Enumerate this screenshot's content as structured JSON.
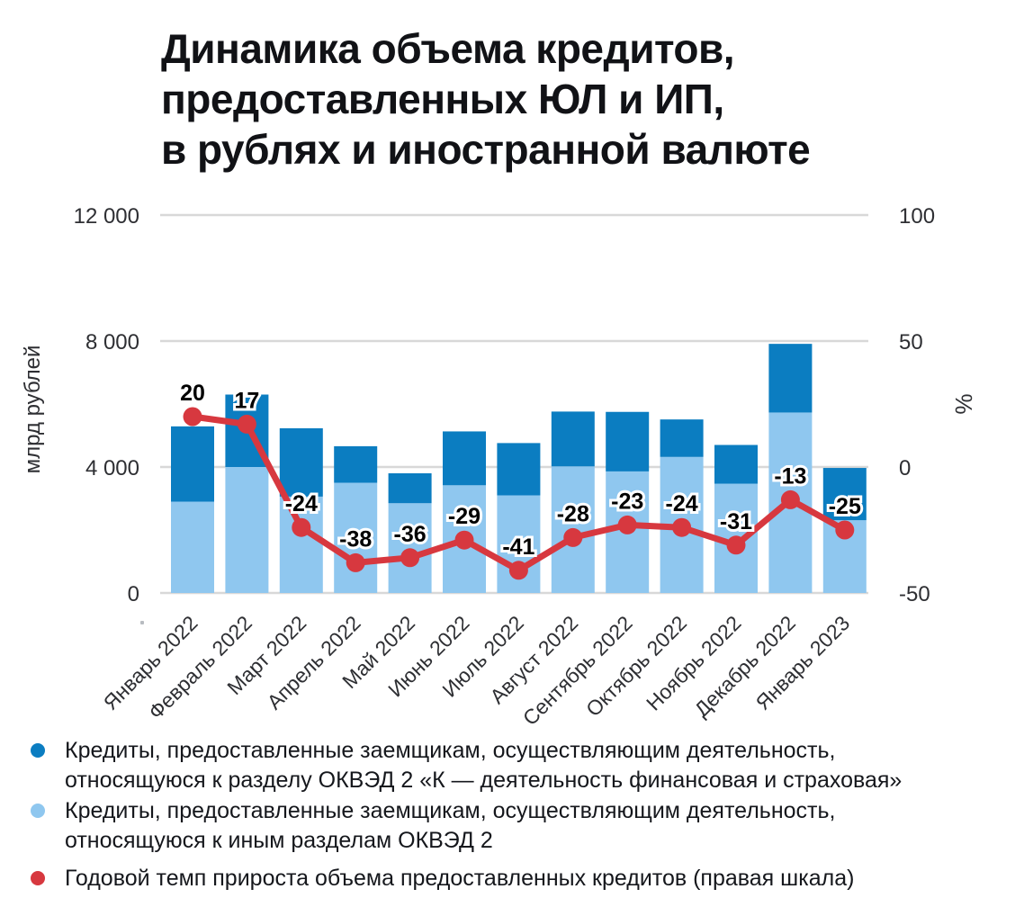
{
  "title": "Динамика объема кредитов,\nпредоставленных ЮЛ и ИП,\nв рублях и иностранной валюте",
  "colors": {
    "bar_dark_blue": "#0B7DC1",
    "bar_light_blue": "#8FC7EF",
    "line_red": "#D7383F",
    "gridline": "#D8D8D8",
    "tick_text": "#2E2F33",
    "data_label_text": "#000000",
    "data_label_halo": "#FFFFFF"
  },
  "chart_data": {
    "type": "bar+line",
    "subtype": "stacked-bar-with-line-right-axis",
    "grid": true,
    "legend_position": "bottom",
    "categories": [
      "Январь 2022",
      "Февраль 2022",
      "Март 2022",
      "Апрель 2022",
      "Май 2022",
      "Июнь 2022",
      "Июль 2022",
      "Август 2022",
      "Сентябрь 2022",
      "Октябрь 2022",
      "Ноябрь 2022",
      "Декабрь 2022",
      "Январь 2023"
    ],
    "left_axis": {
      "title": "млрд рублей",
      "range": [
        0,
        12000
      ],
      "ticks": [
        0,
        4000,
        8000,
        12000
      ],
      "tick_labels": [
        "0",
        "4 000",
        "8 000",
        "12 000"
      ]
    },
    "right_axis": {
      "title": "%",
      "range": [
        -50,
        100
      ],
      "ticks": [
        -50,
        0,
        50,
        100
      ],
      "tick_labels": [
        "-50",
        "0",
        "50",
        "100"
      ]
    },
    "series": [
      {
        "id": "okved_k",
        "type": "bar",
        "stack_position": "top",
        "color": "#0B7DC1",
        "name": "Кредиты, предоставленные заемщикам, осуществляющим деятельность,\nотносящуюся к разделу ОКВЭД 2 «К — деятельность финансовая и страховая»",
        "values": [
          2390,
          2300,
          2170,
          1160,
          950,
          1710,
          1660,
          1740,
          1890,
          1190,
          1230,
          2180,
          1660
        ]
      },
      {
        "id": "okved_other",
        "type": "bar",
        "stack_position": "bottom",
        "color": "#8FC7EF",
        "name": "Кредиты, предоставленные заемщикам, осуществляющим деятельность,\nотносящуюся к иным разделам ОКВЭД 2",
        "values": [
          2900,
          4000,
          3060,
          3500,
          2850,
          3420,
          3100,
          4020,
          3860,
          4320,
          3470,
          5730,
          2310
        ]
      },
      {
        "id": "growth_rate",
        "type": "line",
        "axis": "right",
        "color": "#D7383F",
        "name": "Годовой темп прироста объема предоставленных кредитов (правая шкала)",
        "values": [
          20,
          17,
          -24,
          -38,
          -36,
          -29,
          -41,
          -28,
          -23,
          -24,
          -31,
          -13,
          -25
        ],
        "labels": [
          "20",
          "17",
          "-24",
          "-38",
          "-36",
          "-29",
          "-41",
          "-28",
          "-23",
          "-24",
          "-31",
          "-13",
          "-25"
        ]
      }
    ]
  },
  "legend": {
    "items": [
      {
        "label_ref": "chart_data.series.0.name",
        "marker": "circle"
      },
      {
        "label_ref": "chart_data.series.1.name",
        "marker": "circle"
      },
      {
        "label_ref": "chart_data.series.2.name",
        "marker": "circle"
      }
    ]
  }
}
